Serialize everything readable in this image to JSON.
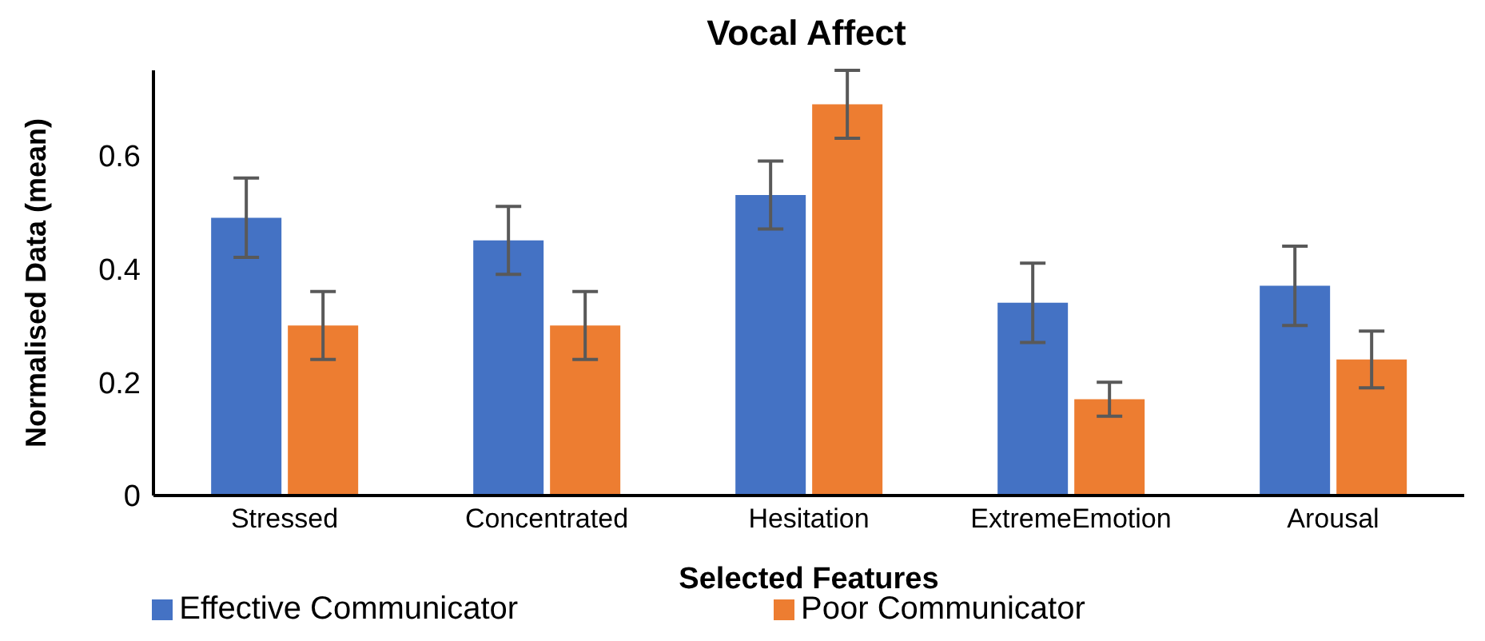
{
  "chart_data": {
    "type": "bar",
    "title": "Vocal Affect",
    "xlabel": "Selected Features",
    "ylabel": "Normalised Data (mean)",
    "categories": [
      "Stressed",
      "Concentrated",
      "Hesitation",
      "ExtremeEmotion",
      "Arousal"
    ],
    "series": [
      {
        "name": "Effective Communicator",
        "color": "#4472c4",
        "values": [
          0.49,
          0.45,
          0.53,
          0.34,
          0.37
        ],
        "errors": [
          0.07,
          0.06,
          0.06,
          0.07,
          0.07
        ]
      },
      {
        "name": "Poor Communicator",
        "color": "#ed7d31",
        "values": [
          0.3,
          0.3,
          0.69,
          0.17,
          0.24
        ],
        "errors": [
          0.06,
          0.06,
          0.06,
          0.03,
          0.05
        ]
      }
    ],
    "ylim": [
      0,
      0.75
    ],
    "yticks": [
      0,
      0.2,
      0.4,
      0.6
    ],
    "grid": false,
    "legend": "bottom"
  }
}
